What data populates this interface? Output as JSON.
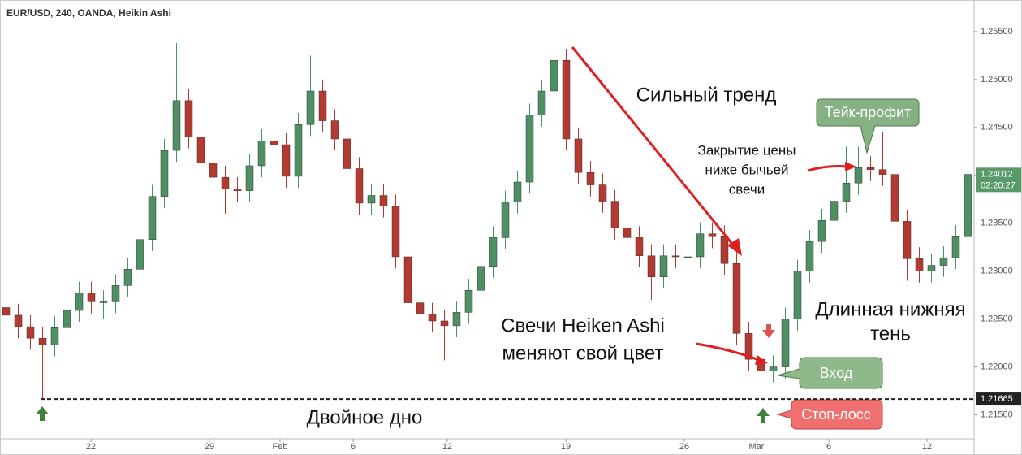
{
  "chart_data": {
    "type": "candlestick",
    "title": "EUR/USD, 240, OANDA, Heikin Ashi",
    "up_color": "#4e8f64",
    "down_color": "#b23a31",
    "open": [
      1.2262,
      1.2254,
      1.2242,
      1.223,
      1.2223,
      1.2241,
      1.2259,
      1.2277,
      1.2268,
      1.2268,
      1.2285,
      1.2302,
      1.2333,
      1.2378,
      1.2426,
      1.2478,
      1.244,
      1.2413,
      1.2398,
      1.2386,
      1.2384,
      1.241,
      1.2436,
      1.2432,
      1.2399,
      1.2453,
      1.2488,
      1.2457,
      1.2438,
      1.2407,
      1.2371,
      1.2379,
      1.2368,
      1.2315,
      1.2267,
      1.2255,
      1.2248,
      1.2243,
      1.2257,
      1.228,
      1.2305,
      1.2335,
      1.2372,
      1.2393,
      1.2463,
      1.2488,
      1.252,
      1.2438,
      1.2403,
      1.239,
      1.2373,
      1.2345,
      1.2335,
      1.2316,
      1.2294,
      1.2316,
      1.2315,
      1.2315,
      1.2339,
      1.2336,
      1.2308,
      1.2235,
      1.2208,
      1.2196,
      1.22,
      1.225,
      1.23,
      1.2331,
      1.2353,
      1.2373,
      1.2392,
      1.2408,
      1.2406,
      1.2401,
      1.2352,
      1.2313,
      1.23,
      1.2306,
      1.2314,
      1.2336
    ],
    "high": [
      1.2274,
      1.2266,
      1.2254,
      1.2242,
      1.2253,
      1.2271,
      1.2289,
      1.2289,
      1.228,
      1.2297,
      1.2314,
      1.2345,
      1.239,
      1.2438,
      1.2538,
      1.249,
      1.2452,
      1.2425,
      1.241,
      1.2398,
      1.2422,
      1.2448,
      1.2448,
      1.2444,
      1.2465,
      1.2525,
      1.25,
      1.2469,
      1.245,
      1.2419,
      1.2391,
      1.2391,
      1.238,
      1.2327,
      1.2279,
      1.2267,
      1.226,
      1.2269,
      1.2292,
      1.2317,
      1.2347,
      1.2384,
      1.2405,
      1.2475,
      1.25,
      1.2558,
      1.2532,
      1.245,
      1.2415,
      1.2402,
      1.2385,
      1.2357,
      1.2347,
      1.2328,
      1.2328,
      1.2328,
      1.2327,
      1.2351,
      1.2351,
      1.2348,
      1.232,
      1.2247,
      1.222,
      1.2212,
      1.2262,
      1.2312,
      1.2343,
      1.2365,
      1.2385,
      1.243,
      1.243,
      1.242,
      1.2445,
      1.2413,
      1.2364,
      1.2325,
      1.2318,
      1.2326,
      1.2348,
      1.2413
    ],
    "low": [
      1.2242,
      1.223,
      1.2218,
      1.2167,
      1.2211,
      1.2229,
      1.2247,
      1.2256,
      1.225,
      1.2256,
      1.2273,
      1.229,
      1.2321,
      1.2366,
      1.2414,
      1.2428,
      1.2401,
      1.2386,
      1.236,
      1.2372,
      1.2372,
      1.2398,
      1.242,
      1.2387,
      1.2387,
      1.2441,
      1.2445,
      1.2426,
      1.2395,
      1.2359,
      1.2359,
      1.2356,
      1.2303,
      1.2255,
      1.223,
      1.2236,
      1.2207,
      1.2231,
      1.2245,
      1.2268,
      1.2293,
      1.2323,
      1.236,
      1.2381,
      1.2451,
      1.2476,
      1.2426,
      1.2391,
      1.2378,
      1.2361,
      1.2333,
      1.2323,
      1.2304,
      1.227,
      1.2282,
      1.2303,
      1.2303,
      1.2303,
      1.2324,
      1.2296,
      1.2223,
      1.2196,
      1.2166,
      1.2184,
      1.2188,
      1.2238,
      1.2288,
      1.2319,
      1.2341,
      1.2361,
      1.238,
      1.2394,
      1.2389,
      1.234,
      1.229,
      1.2288,
      1.2288,
      1.2294,
      1.2302,
      1.2324
    ],
    "close": [
      1.2254,
      1.2242,
      1.223,
      1.2223,
      1.2241,
      1.2259,
      1.2277,
      1.2268,
      1.2268,
      1.2285,
      1.2302,
      1.2333,
      1.2378,
      1.2426,
      1.2478,
      1.244,
      1.2413,
      1.2398,
      1.2386,
      1.2384,
      1.241,
      1.2436,
      1.2432,
      1.2399,
      1.2453,
      1.2488,
      1.2457,
      1.2438,
      1.2407,
      1.2371,
      1.2379,
      1.2368,
      1.2315,
      1.2267,
      1.2255,
      1.2248,
      1.2243,
      1.2257,
      1.228,
      1.2305,
      1.2335,
      1.2372,
      1.2393,
      1.2463,
      1.2488,
      1.252,
      1.2438,
      1.2403,
      1.239,
      1.2373,
      1.2345,
      1.2335,
      1.2316,
      1.2294,
      1.2316,
      1.2315,
      1.2315,
      1.2339,
      1.2336,
      1.2308,
      1.2235,
      1.2208,
      1.2196,
      1.22,
      1.225,
      1.23,
      1.2331,
      1.2353,
      1.2373,
      1.2392,
      1.2408,
      1.2406,
      1.2401,
      1.2352,
      1.2313,
      1.23,
      1.2306,
      1.2314,
      1.2336,
      1.2401
    ],
    "xlim": [
      0,
      80
    ],
    "xticks": [
      {
        "value": 7.47,
        "label": "22"
      },
      {
        "value": 17.2,
        "label": "29"
      },
      {
        "value": 23,
        "label": "Feb"
      },
      {
        "value": 29,
        "label": "6"
      },
      {
        "value": 36.73,
        "label": "12"
      },
      {
        "value": 46.47,
        "label": "19"
      },
      {
        "value": 56.2,
        "label": "26"
      },
      {
        "value": 62.13,
        "label": "Mar"
      },
      {
        "value": 68.07,
        "label": "6"
      },
      {
        "value": 76.13,
        "label": "12"
      }
    ],
    "ylim": [
      1.2125,
      1.2583
    ],
    "yticks": [
      {
        "value": 1.215,
        "label": "1.21500"
      },
      {
        "value": 1.22,
        "label": "1.22000"
      },
      {
        "value": 1.225,
        "label": "1.22500"
      },
      {
        "value": 1.23,
        "label": "1.23000"
      },
      {
        "value": 1.235,
        "label": "1.23500"
      },
      {
        "value": 1.24,
        "label": "1.24000"
      },
      {
        "value": 1.245,
        "label": "1.24500"
      },
      {
        "value": 1.25,
        "label": "1.25000"
      },
      {
        "value": 1.255,
        "label": "1.25500"
      }
    ],
    "price_line": 1.21665,
    "last_price": 1.24012,
    "countdown": "02:20:27",
    "annotations": {
      "strong_trend": "Сильный тренд",
      "take_profit": "Тейк-профит",
      "close_below": [
        "Закрытие цены",
        "ниже бычьей",
        "свечи"
      ],
      "long_shadow": [
        "Длинная нижняя",
        "тень"
      ],
      "color_change": [
        "Свечи Heiken Ashi",
        "меняют свой цвет"
      ],
      "entry": "Вход",
      "stop_loss": "Стоп-лосс",
      "double_bottom": "Двойное дно"
    }
  }
}
